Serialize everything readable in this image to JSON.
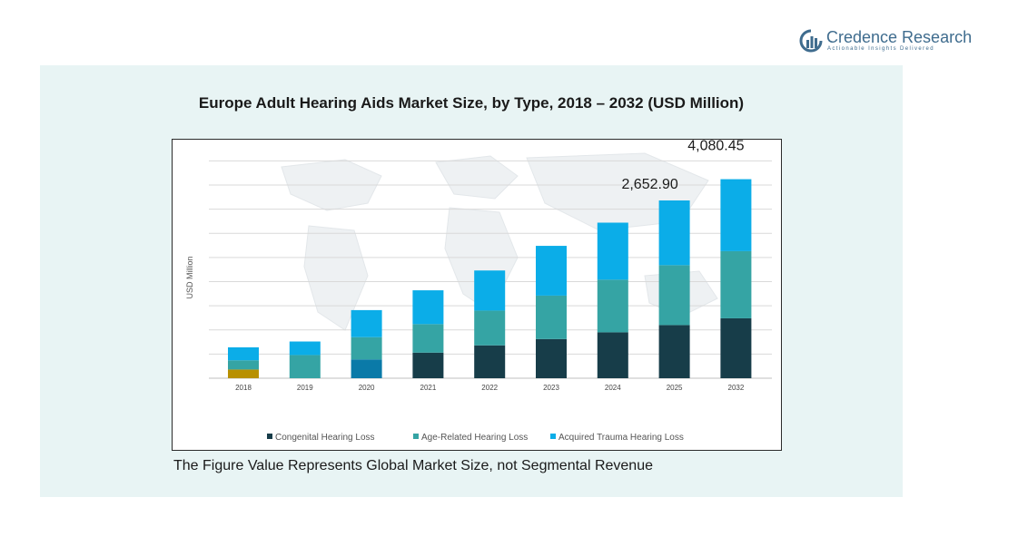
{
  "brand": {
    "name": "Credence Research",
    "tagline": "Actionable Insights Delivered"
  },
  "note": "The Figure Value Represents Global Market Size, not Segmental Revenue",
  "colors": {
    "panel": "#e8f4f4",
    "congenital": "#173d49",
    "age_related": "#35a4a4",
    "acquired_trauma": "#0bade8",
    "grid": "#d9d9d9",
    "y2018_bottom": "#b89000",
    "y2020_bottom": "#0a7aa8",
    "brand": "#3f6c8e"
  },
  "chart_data": {
    "type": "bar",
    "stacked": true,
    "title": "Europe Adult Hearing Aids Market Size, by Type, 2018 – 2032 (USD Million)",
    "ylabel": "USD Million",
    "xlabel": "",
    "categories": [
      "2018",
      "2019",
      "2020",
      "2021",
      "2022",
      "2023",
      "2024",
      "2025",
      "2032"
    ],
    "series": [
      {
        "name": "Congenital Hearing Loss",
        "values": [
          180,
          0,
          390,
          530,
          680,
          810,
          950,
          1100,
          1240
        ]
      },
      {
        "name": "Age-Related Hearing Loss",
        "values": [
          190,
          480,
          460,
          590,
          720,
          900,
          1090,
          1240,
          1390
        ]
      },
      {
        "name": "Acquired Trauma Hearing Loss",
        "values": [
          270,
          280,
          560,
          700,
          830,
          1030,
          1180,
          1340,
          1490
        ]
      }
    ],
    "data_labels": [
      {
        "category": "2025",
        "text": "2,652.90"
      },
      {
        "category": "2032",
        "text": "4,080.45"
      }
    ],
    "ylim": [
      0,
      4750
    ],
    "grid": true,
    "legend_position": "bottom"
  }
}
